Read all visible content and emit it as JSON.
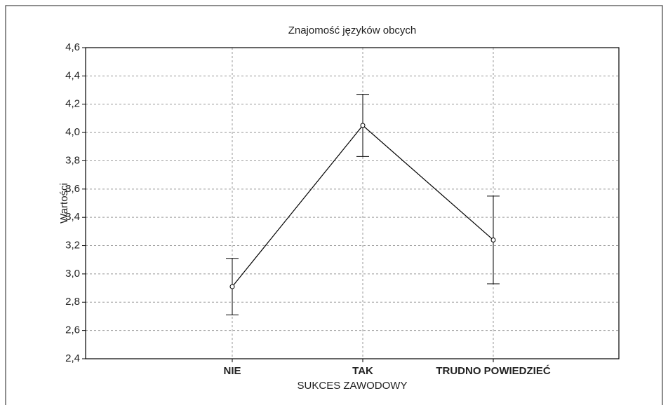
{
  "chart_data": {
    "type": "line",
    "title": "Znajomość języków obcych",
    "x_label": "SUKCES ZAWODOWY",
    "y_label": "Wartości",
    "categories": [
      "NIE",
      "TAK",
      "TRUDNO POWIEDZIEĆ"
    ],
    "values": [
      2.91,
      4.05,
      3.24
    ],
    "errors": [
      0.2,
      0.22,
      0.31
    ],
    "color": "#000000",
    "ylim": [
      2.4,
      4.6
    ],
    "yticks": [
      {
        "value": 2.4,
        "label": "2,4"
      },
      {
        "value": 2.6,
        "label": "2,6"
      },
      {
        "value": 2.8,
        "label": "2,8"
      },
      {
        "value": 3.0,
        "label": "3,0"
      },
      {
        "value": 3.2,
        "label": "3,2"
      },
      {
        "value": 3.4,
        "label": "3,4"
      },
      {
        "value": 3.6,
        "label": "3,6"
      },
      {
        "value": 3.8,
        "label": "3,8"
      },
      {
        "value": 4.0,
        "label": "4,0"
      },
      {
        "value": 4.2,
        "label": "4,2"
      },
      {
        "value": 4.4,
        "label": "4,4"
      },
      {
        "value": 4.6,
        "label": "4,6"
      }
    ],
    "grid": true
  }
}
